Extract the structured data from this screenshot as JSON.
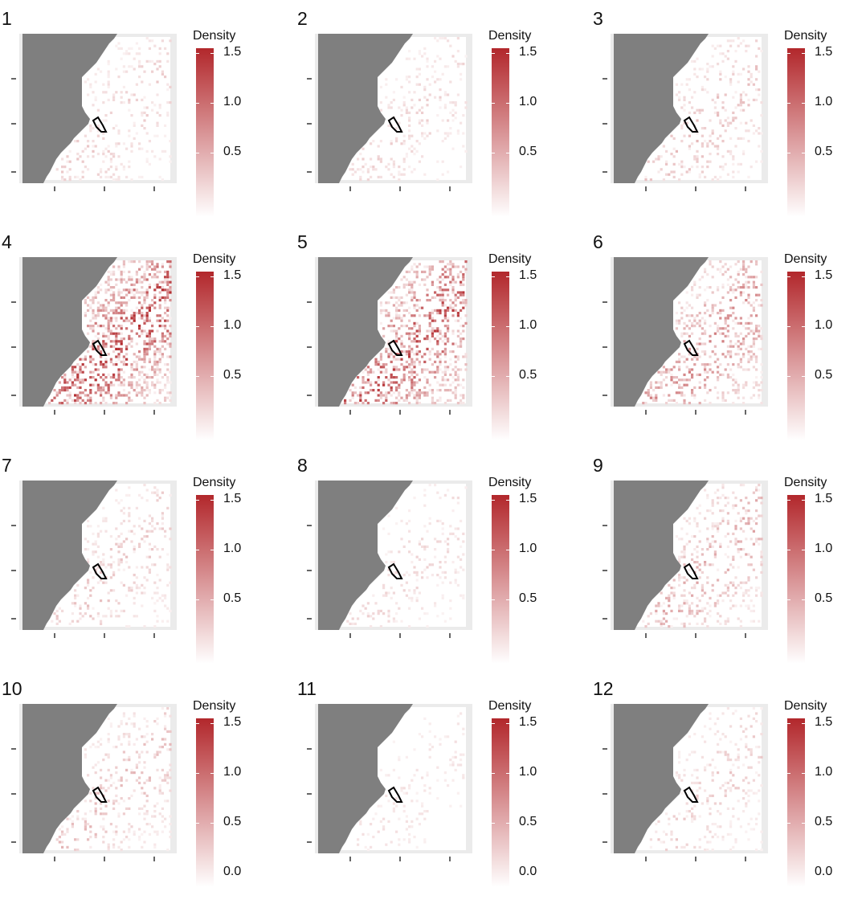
{
  "figure": {
    "legend_title": "Density",
    "legend_ticks": [
      "1.5",
      "1.0",
      "0.5",
      "0.0"
    ],
    "legend_color_low": "#ffffff",
    "legend_color_high": "#b2272b",
    "land_color": "#7f7f7f",
    "panel_background": "#ebebeb"
  },
  "chart_data": {
    "type": "heatmap",
    "colorbar": {
      "label": "Density",
      "range": [
        0.0,
        1.5
      ],
      "ticks": [
        0.0,
        0.5,
        1.0,
        1.5
      ]
    },
    "x_tick_labels_shown": false,
    "y_tick_labels_shown": false,
    "panels": [
      {
        "label": "1",
        "intensity": 0.25
      },
      {
        "label": "2",
        "intensity": 0.22
      },
      {
        "label": "3",
        "intensity": 0.3
      },
      {
        "label": "4",
        "intensity": 0.9
      },
      {
        "label": "5",
        "intensity": 0.85
      },
      {
        "label": "6",
        "intensity": 0.55
      },
      {
        "label": "7",
        "intensity": 0.28
      },
      {
        "label": "8",
        "intensity": 0.2
      },
      {
        "label": "9",
        "intensity": 0.4
      },
      {
        "label": "10",
        "intensity": 0.32
      },
      {
        "label": "11",
        "intensity": 0.15
      },
      {
        "label": "12",
        "intensity": 0.25
      }
    ]
  }
}
